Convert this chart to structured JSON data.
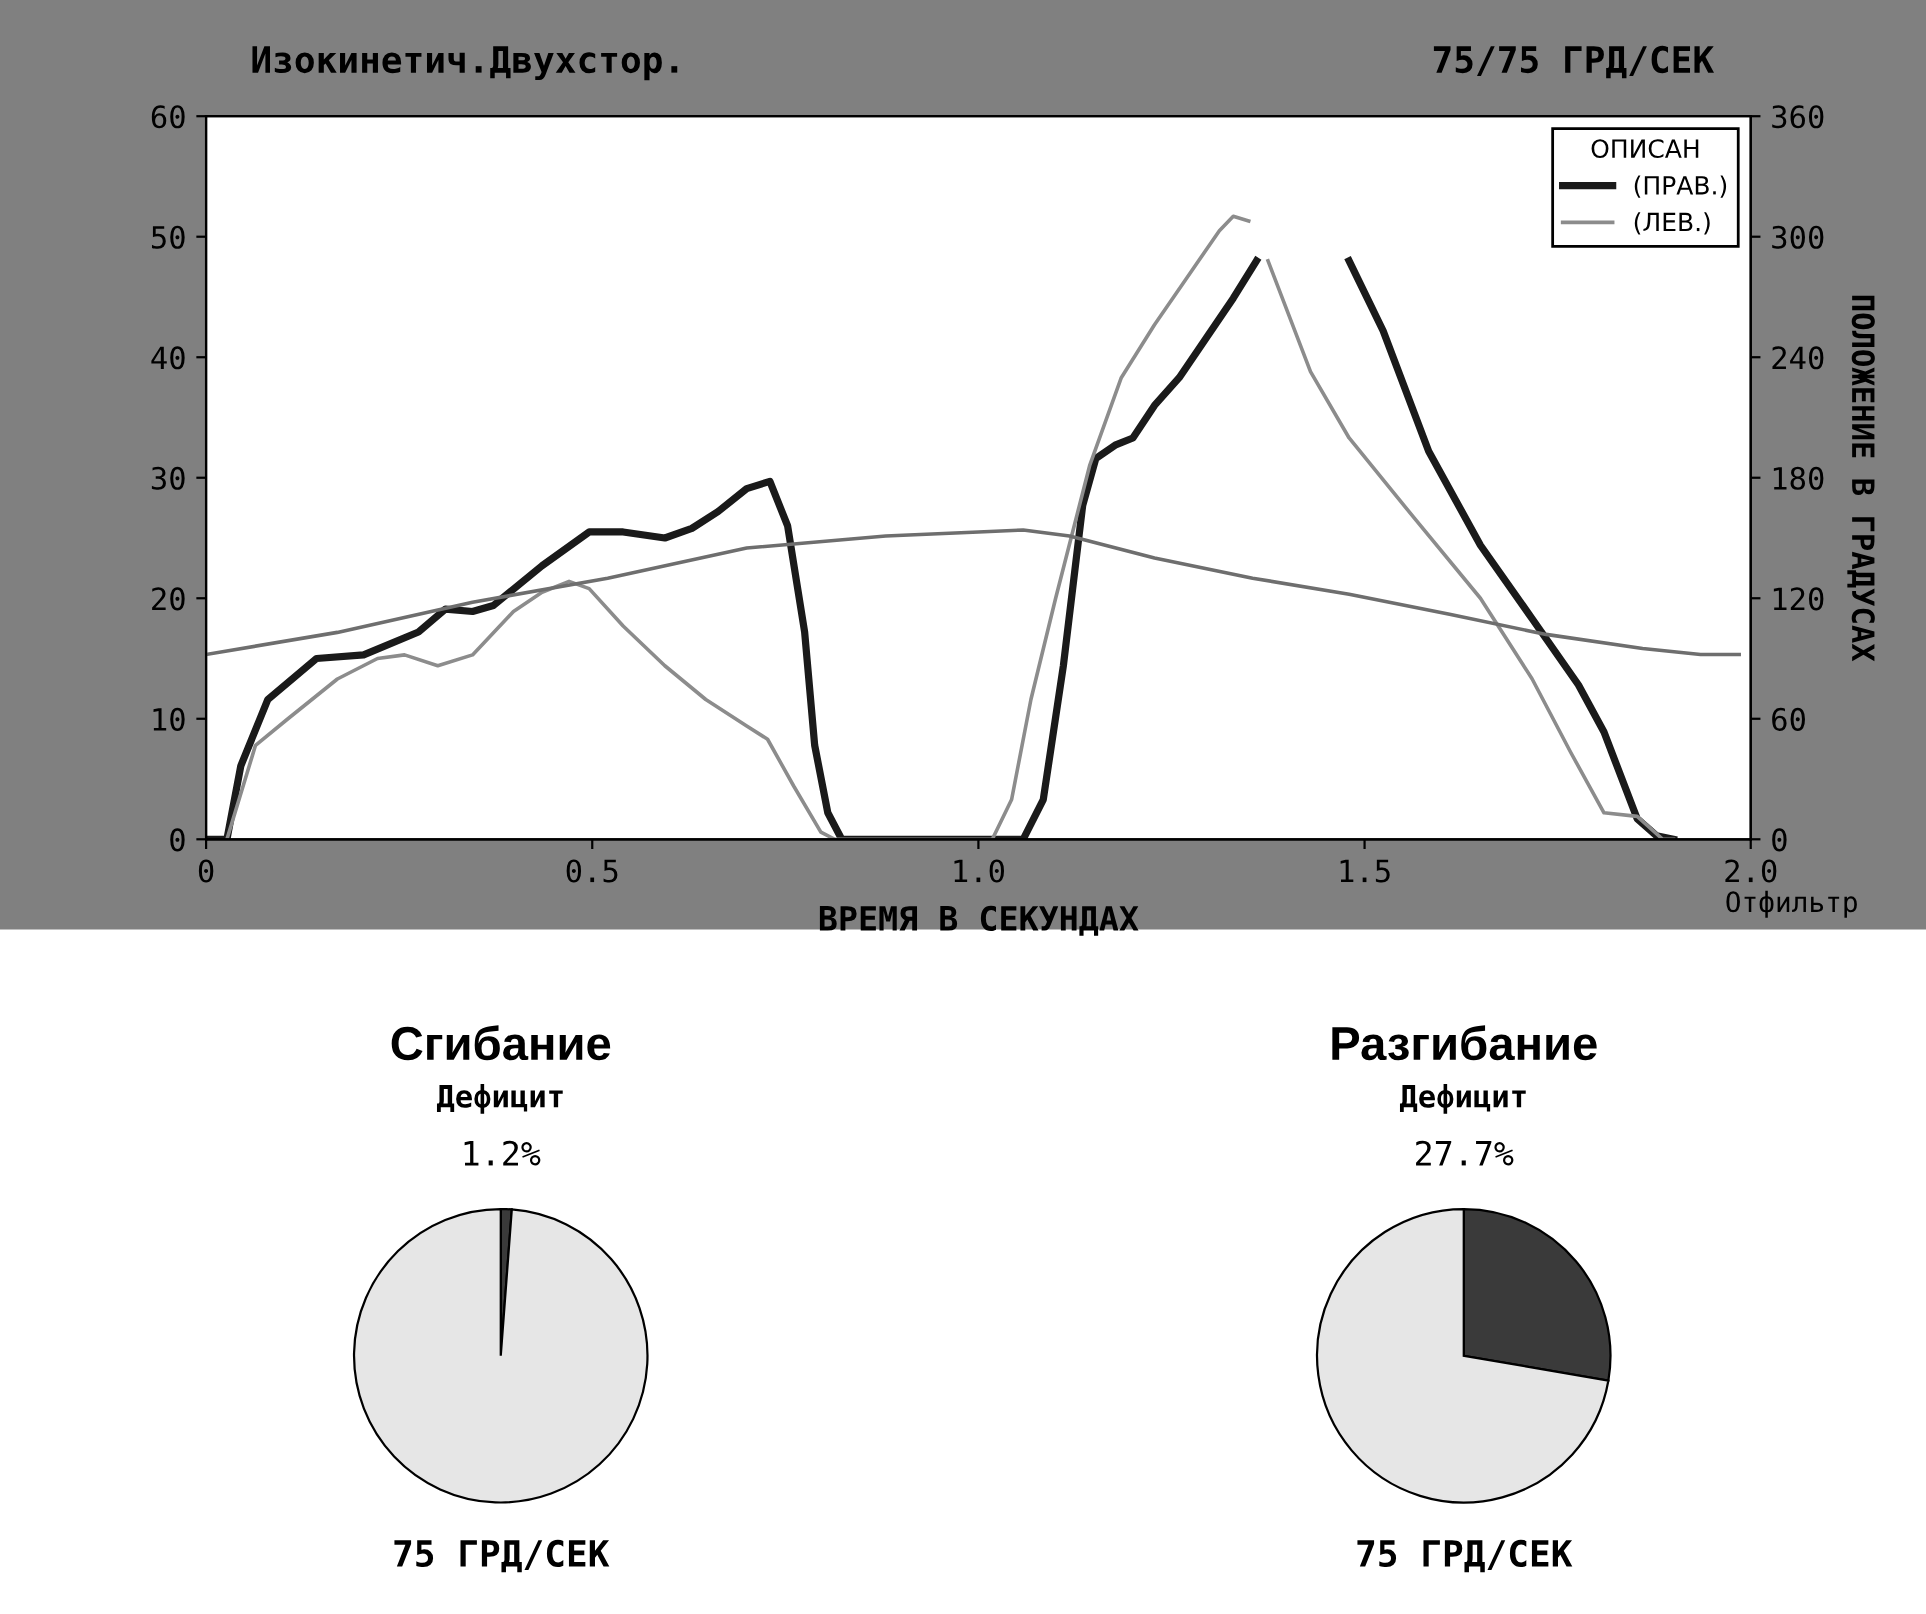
{
  "chart_data": [
    {
      "type": "line",
      "title": "Изокинетич.Двухстор.",
      "subtitle": "75/75 ГРД/СЕК",
      "xlabel": "ВРЕМЯ В СЕКУНДАХ",
      "y2label": "ПОЛОЖЕНИЕ В ГРАДУСАХ",
      "legend_title": "ОПИСАН",
      "annotations": [
        "Отфильтр"
      ],
      "xlim": [
        0,
        2
      ],
      "xticks": [
        0,
        0.5,
        {
          "value": 1,
          "label": "1.0"
        },
        1.5,
        {
          "value": 2,
          "label": "2.0"
        }
      ],
      "ylim": [
        0,
        60
      ],
      "yticks": [
        0,
        10,
        20,
        30,
        40,
        50,
        60
      ],
      "y2lim": [
        0,
        360
      ],
      "y2ticks": [
        0,
        60,
        120,
        180,
        240,
        300,
        360
      ],
      "grid": false,
      "legend": "top right",
      "marker": "none",
      "line_style": "solid",
      "series": [
        {
          "name": "(ПРАВ.)",
          "color": "#1a1a1a",
          "x": [
            0,
            0.027,
            0.045,
            0.08,
            0.143,
            0.204,
            0.275,
            0.31,
            0.345,
            0.372,
            0.435,
            0.496,
            0.54,
            0.594,
            0.629,
            0.663,
            0.7,
            0.73,
            0.753,
            0.775,
            0.788,
            0.805,
            0.823,
            1.0,
            1.058,
            1.084,
            1.11,
            1.135,
            1.152,
            1.177,
            1.2,
            1.228,
            1.26,
            1.295,
            1.33,
            1.36,
            1.42,
            1.48,
            1.524,
            1.583,
            1.65,
            1.717,
            1.777,
            1.81,
            1.853,
            1.878,
            1.9
          ],
          "values": [
            0,
            0,
            6.1,
            11.6,
            15,
            15.3,
            17.2,
            19.1,
            18.9,
            19.4,
            22.7,
            25.5,
            25.5,
            25,
            25.8,
            27.2,
            29.1,
            29.7,
            26,
            17.2,
            7.8,
            2.2,
            0,
            0,
            0,
            3.3,
            14.4,
            27.7,
            31.6,
            32.7,
            33.3,
            36,
            38.3,
            41.6,
            44.9,
            48,
            null,
            48,
            42.2,
            32.2,
            24.4,
            18.3,
            12.8,
            8.9,
            1.7,
            0.3,
            0
          ]
        },
        {
          "name": "(ЛЕВ.)",
          "color": "#8c8c8c",
          "x": [
            0.027,
            0.064,
            0.106,
            0.17,
            0.222,
            0.257,
            0.3,
            0.345,
            0.398,
            0.435,
            0.47,
            0.496,
            0.54,
            0.594,
            0.647,
            0.7,
            0.727,
            0.761,
            0.796,
            0.814,
            1.0,
            1.018,
            1.043,
            1.068,
            1.1,
            1.144,
            1.185,
            1.228,
            1.27,
            1.312,
            1.33,
            1.35,
            1.36,
            1.375,
            1.43,
            1.48,
            1.565,
            1.65,
            1.717,
            1.767,
            1.81,
            1.853,
            1.886,
            1.9
          ],
          "values": [
            0,
            7.8,
            10,
            13.3,
            15,
            15.3,
            14.4,
            15.3,
            18.9,
            20.5,
            21.4,
            20.8,
            17.7,
            14.4,
            11.6,
            9.4,
            8.3,
            4.4,
            0.6,
            0,
            0,
            0,
            3.3,
            11.6,
            20,
            31,
            38.3,
            42.7,
            46.6,
            50.5,
            51.7,
            51.3,
            null,
            48,
            38.8,
            33.3,
            26.6,
            20,
            13.3,
            7.2,
            2.2,
            1.9,
            0,
            0
          ]
        },
        {
          "axis": "y2",
          "color": "#6e6e6e",
          "x": [
            0,
            0.17,
            0.345,
            0.52,
            0.7,
            0.88,
            1.0,
            1.058,
            1.118,
            1.228,
            1.355,
            1.48,
            1.61,
            1.735,
            1.86,
            1.935,
            1.985
          ],
          "values": [
            92,
            103,
            118,
            130,
            145,
            151,
            153,
            154,
            151,
            140,
            130,
            122,
            112,
            102,
            95,
            92,
            92
          ]
        }
      ]
    },
    {
      "type": "pie",
      "title": "Сгибание",
      "subtitle": "Дефицит",
      "xlabel": "75 ГРД/СЕК",
      "categories": [
        null,
        null
      ],
      "values": [
        1.2,
        98.8
      ],
      "colors": [
        "#3a3a3a",
        "#e6e6e6"
      ],
      "value_labels": [
        "1.2%",
        null
      ]
    },
    {
      "type": "pie",
      "title": "Разгибание",
      "subtitle": "Дефицит",
      "xlabel": "75 ГРД/СЕК",
      "categories": [
        null,
        null
      ],
      "values": [
        27.7,
        72.3
      ],
      "colors": [
        "#3a3a3a",
        "#e6e6e6"
      ],
      "value_labels": [
        "27.7%",
        null
      ]
    }
  ]
}
